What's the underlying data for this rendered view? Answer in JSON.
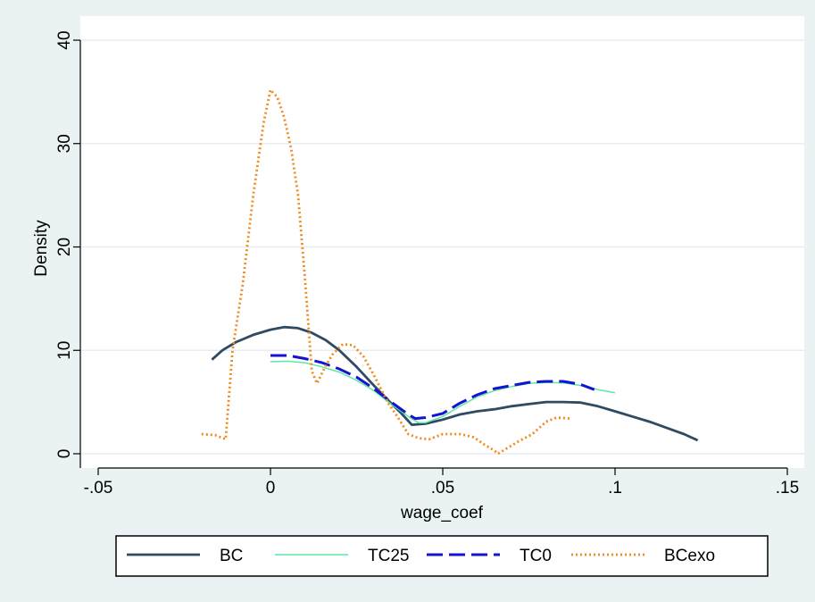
{
  "chart_data": {
    "type": "line",
    "title": "",
    "xlabel": "wage_coef",
    "ylabel": "Density",
    "xlim": [
      -0.05,
      0.15
    ],
    "ylim": [
      0,
      40
    ],
    "xticks": [
      {
        "value": -0.05,
        "label": "-.05"
      },
      {
        "value": 0,
        "label": "0"
      },
      {
        "value": 0.05,
        "label": ".05"
      },
      {
        "value": 0.1,
        "label": ".1"
      },
      {
        "value": 0.15,
        "label": ".15"
      }
    ],
    "yticks": [
      {
        "value": 0,
        "label": "0"
      },
      {
        "value": 10,
        "label": "10"
      },
      {
        "value": 20,
        "label": "20"
      },
      {
        "value": 30,
        "label": "30"
      },
      {
        "value": 40,
        "label": "40"
      }
    ],
    "grid": true,
    "legend_position": "bottom",
    "series": [
      {
        "name": "BC",
        "color": "#2f4a63",
        "style": "solid",
        "points": [
          [
            -0.017,
            9.1
          ],
          [
            -0.014,
            10.0
          ],
          [
            -0.01,
            10.8
          ],
          [
            -0.005,
            11.5
          ],
          [
            0,
            12.0
          ],
          [
            0.004,
            12.25
          ],
          [
            0.008,
            12.15
          ],
          [
            0.012,
            11.7
          ],
          [
            0.016,
            11.0
          ],
          [
            0.02,
            10.0
          ],
          [
            0.025,
            8.4
          ],
          [
            0.03,
            6.6
          ],
          [
            0.035,
            4.9
          ],
          [
            0.038,
            3.9
          ],
          [
            0.041,
            2.8
          ],
          [
            0.045,
            2.9
          ],
          [
            0.05,
            3.3
          ],
          [
            0.055,
            3.8
          ],
          [
            0.06,
            4.1
          ],
          [
            0.065,
            4.3
          ],
          [
            0.07,
            4.6
          ],
          [
            0.075,
            4.8
          ],
          [
            0.08,
            5.0
          ],
          [
            0.085,
            5.0
          ],
          [
            0.09,
            4.95
          ],
          [
            0.095,
            4.6
          ],
          [
            0.1,
            4.1
          ],
          [
            0.105,
            3.6
          ],
          [
            0.11,
            3.1
          ],
          [
            0.115,
            2.5
          ],
          [
            0.12,
            1.9
          ],
          [
            0.124,
            1.3
          ]
        ]
      },
      {
        "name": "TC25",
        "color": "#5ee7a8",
        "style": "solid",
        "points": [
          [
            0,
            8.9
          ],
          [
            0.005,
            8.95
          ],
          [
            0.01,
            8.8
          ],
          [
            0.015,
            8.4
          ],
          [
            0.02,
            7.9
          ],
          [
            0.025,
            7.1
          ],
          [
            0.03,
            6.1
          ],
          [
            0.035,
            4.8
          ],
          [
            0.04,
            3.6
          ],
          [
            0.043,
            3.0
          ],
          [
            0.045,
            3.0
          ],
          [
            0.05,
            3.6
          ],
          [
            0.055,
            4.6
          ],
          [
            0.06,
            5.5
          ],
          [
            0.065,
            6.1
          ],
          [
            0.07,
            6.5
          ],
          [
            0.075,
            6.8
          ],
          [
            0.08,
            6.9
          ],
          [
            0.085,
            6.85
          ],
          [
            0.09,
            6.6
          ],
          [
            0.095,
            6.2
          ],
          [
            0.1,
            5.9
          ]
        ]
      },
      {
        "name": "TC0",
        "color": "#1414d0",
        "style": "dash",
        "points": [
          [
            0,
            9.5
          ],
          [
            0.005,
            9.5
          ],
          [
            0.01,
            9.2
          ],
          [
            0.015,
            8.8
          ],
          [
            0.02,
            8.2
          ],
          [
            0.025,
            7.4
          ],
          [
            0.03,
            6.3
          ],
          [
            0.035,
            5.0
          ],
          [
            0.04,
            3.8
          ],
          [
            0.042,
            3.4
          ],
          [
            0.045,
            3.5
          ],
          [
            0.05,
            3.9
          ],
          [
            0.055,
            4.9
          ],
          [
            0.06,
            5.7
          ],
          [
            0.065,
            6.3
          ],
          [
            0.07,
            6.6
          ],
          [
            0.075,
            6.9
          ],
          [
            0.08,
            7.0
          ],
          [
            0.085,
            7.0
          ],
          [
            0.09,
            6.7
          ],
          [
            0.094,
            6.2
          ]
        ]
      },
      {
        "name": "BCexo",
        "color": "#f08a1c",
        "style": "dot",
        "points": [
          [
            -0.02,
            1.9
          ],
          [
            -0.016,
            1.8
          ],
          [
            -0.013,
            1.4
          ],
          [
            -0.011,
            10.0
          ],
          [
            -0.008,
            16.5
          ],
          [
            -0.005,
            25.0
          ],
          [
            -0.002,
            32.0
          ],
          [
            0,
            35.2
          ],
          [
            0.002,
            34.5
          ],
          [
            0.004,
            32.5
          ],
          [
            0.006,
            29.5
          ],
          [
            0.008,
            25.0
          ],
          [
            0.01,
            17.0
          ],
          [
            0.012,
            8.0
          ],
          [
            0.0135,
            6.8
          ],
          [
            0.016,
            8.5
          ],
          [
            0.018,
            9.6
          ],
          [
            0.021,
            10.6
          ],
          [
            0.024,
            10.5
          ],
          [
            0.027,
            9.4
          ],
          [
            0.03,
            7.6
          ],
          [
            0.034,
            5.0
          ],
          [
            0.037,
            3.5
          ],
          [
            0.04,
            1.9
          ],
          [
            0.043,
            1.5
          ],
          [
            0.046,
            1.4
          ],
          [
            0.05,
            1.9
          ],
          [
            0.055,
            1.9
          ],
          [
            0.059,
            1.6
          ],
          [
            0.062,
            0.9
          ],
          [
            0.065,
            0.3
          ],
          [
            0.066,
            0.0
          ],
          [
            0.069,
            0.6
          ],
          [
            0.072,
            1.2
          ],
          [
            0.076,
            1.9
          ],
          [
            0.08,
            3.1
          ],
          [
            0.083,
            3.5
          ],
          [
            0.087,
            3.4
          ]
        ]
      }
    ]
  }
}
